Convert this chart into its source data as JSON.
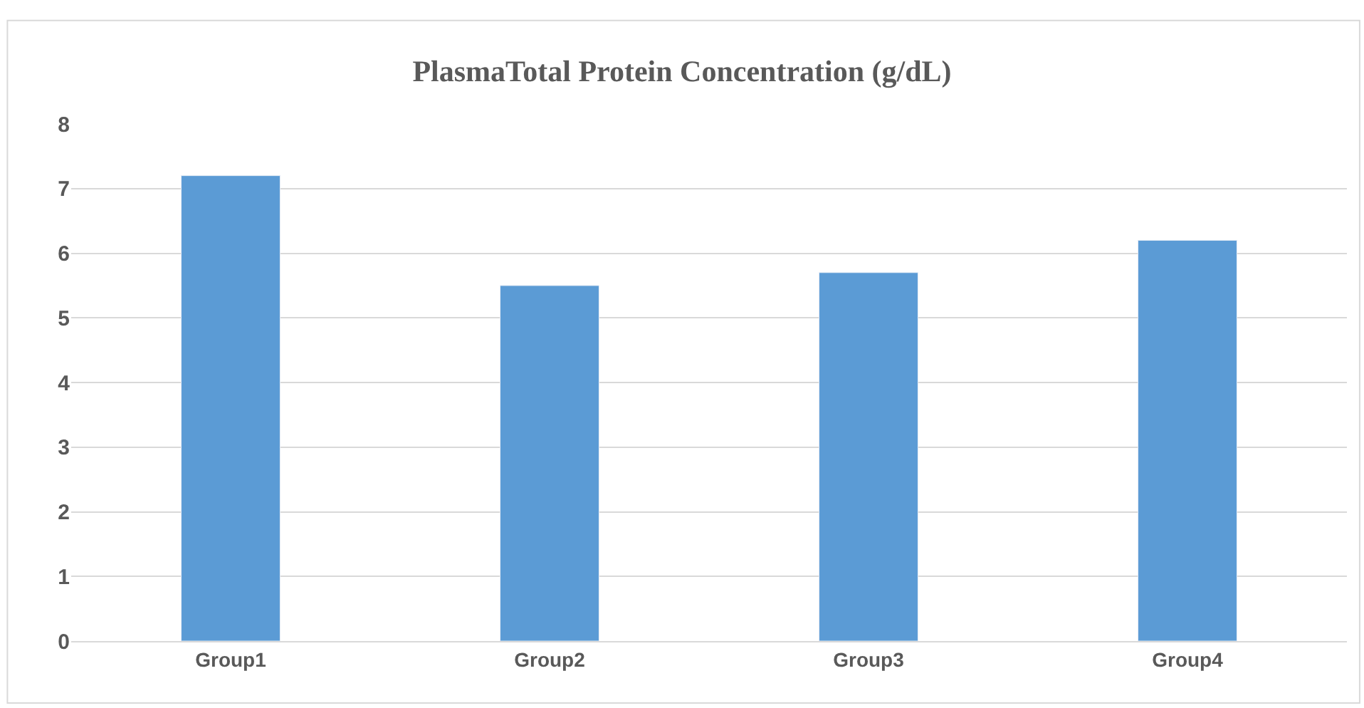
{
  "chart_data": {
    "type": "bar",
    "title": "PlasmaTotal Protein Concentration (g/dL)",
    "categories": [
      "Group1",
      "Group2",
      "Group3",
      "Group4"
    ],
    "values": [
      7.2,
      5.5,
      5.7,
      6.2
    ],
    "color": "#5b9bd5",
    "ylim": [
      0,
      8
    ],
    "yticks": [
      0,
      1,
      2,
      3,
      4,
      5,
      6,
      7,
      8
    ],
    "grid": "y",
    "legend": false
  }
}
